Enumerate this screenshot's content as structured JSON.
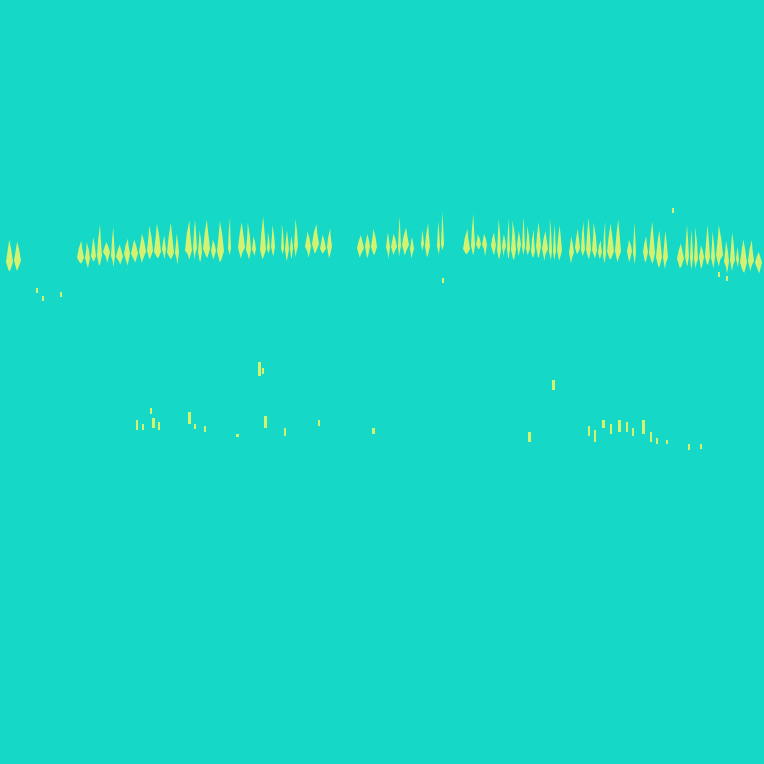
{
  "colors": {
    "background": "#15d8c6",
    "marks": "#d4f26f"
  },
  "scene": {
    "description_hidden": false,
    "bands": [
      "upper-band",
      "lower-band"
    ]
  }
}
